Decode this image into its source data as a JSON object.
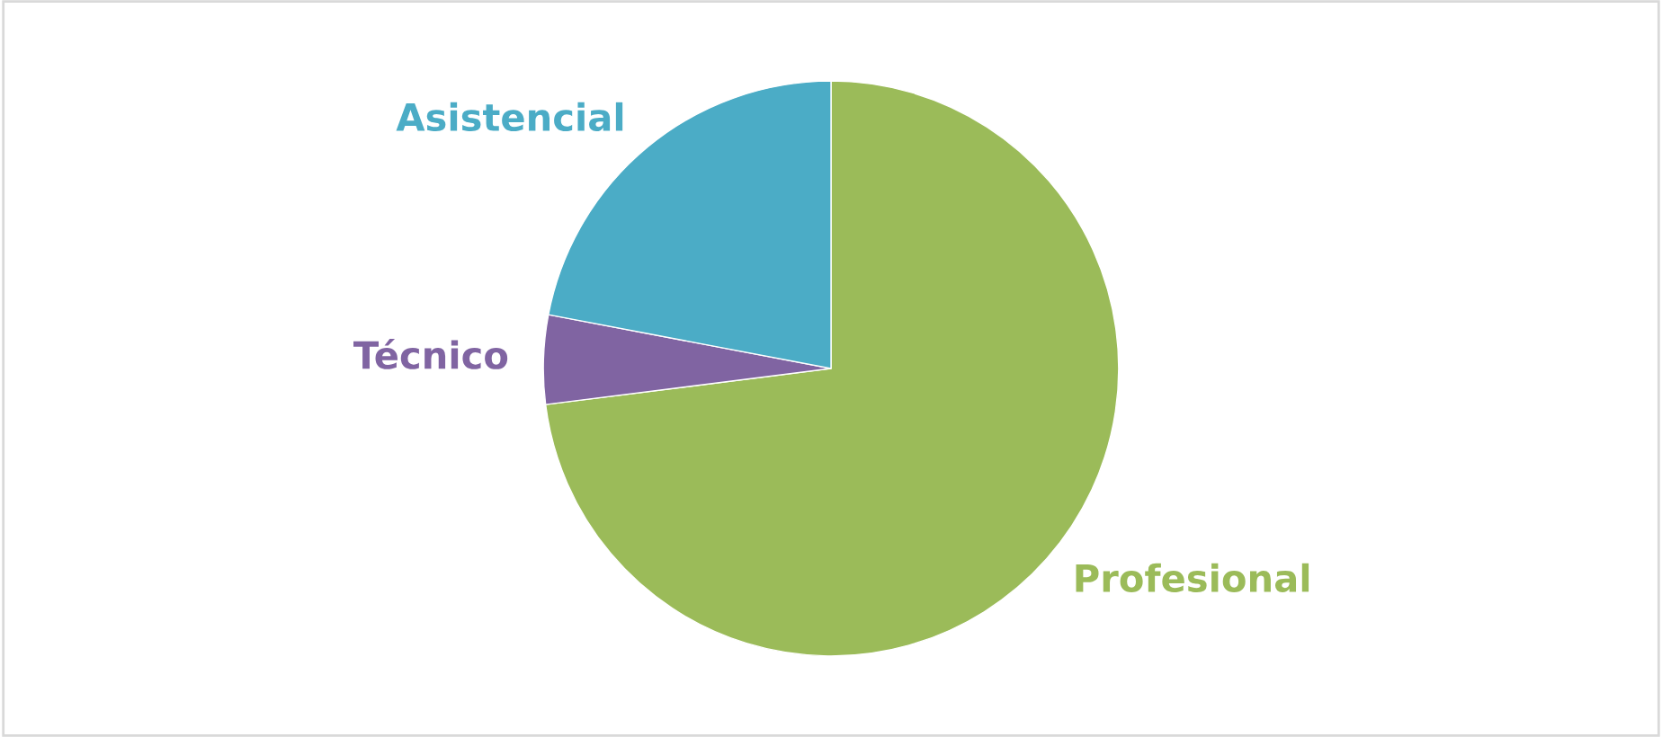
{
  "chart_data": {
    "type": "pie",
    "categories": [
      "Profesional",
      "Técnico",
      "Asistencial"
    ],
    "values": [
      73,
      5,
      22
    ],
    "colors": [
      "#9bbb59",
      "#8064a2",
      "#4bacc6"
    ]
  }
}
